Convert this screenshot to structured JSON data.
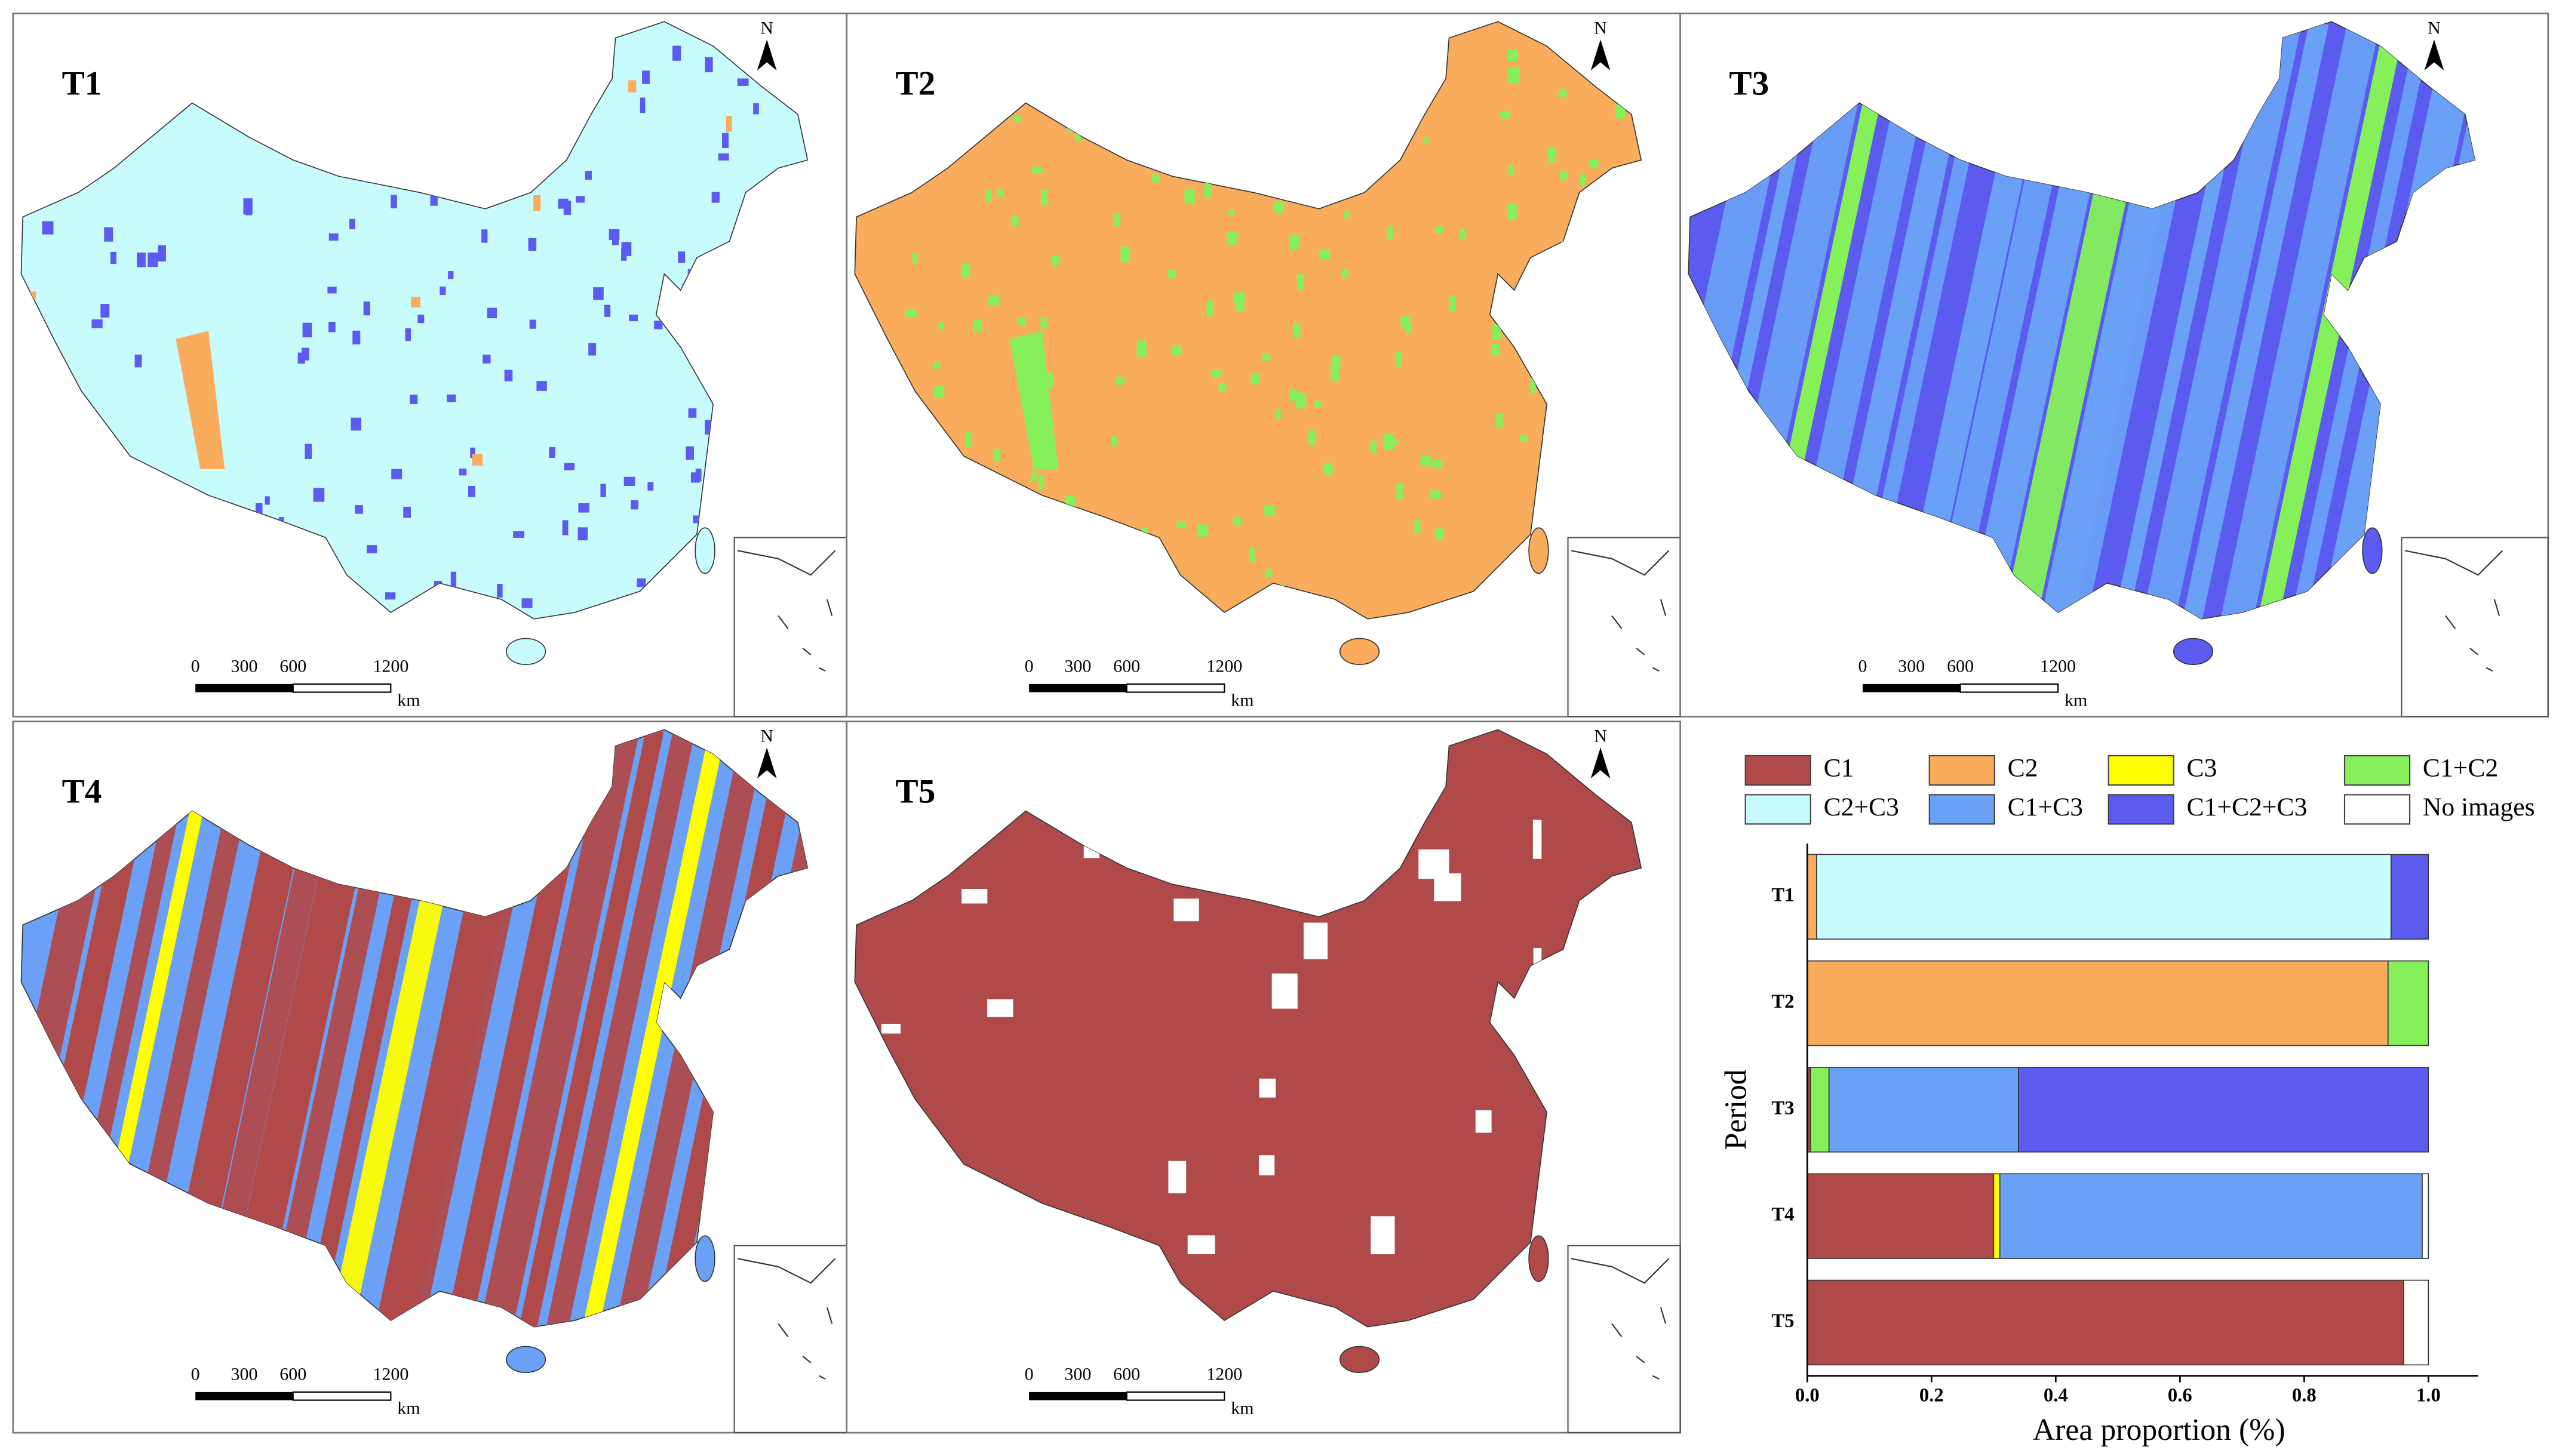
{
  "maps": [
    {
      "title": "T1",
      "fill": "#c8fcfc",
      "patch": "#5b5bf0",
      "patch2": "#f9ac5c",
      "style": "dots"
    },
    {
      "title": "T2",
      "fill": "#f9ac5c",
      "patch": "#86f05a",
      "patch2": "#86f05a",
      "style": "dots"
    },
    {
      "title": "T3",
      "fill": "#5b5bf0",
      "patch": "#6aa0f5",
      "patch2": "#86f05a",
      "style": "stripes"
    },
    {
      "title": "T4",
      "fill": "#6aa0f5",
      "patch": "#b04a4a",
      "patch2": "#ffff00",
      "style": "stripes"
    },
    {
      "title": "T5",
      "fill": "#b04a4a",
      "patch": "#ffffff",
      "patch2": "#ffffff",
      "style": "blocks"
    }
  ],
  "scale_bar": {
    "ticks": [
      0,
      300,
      600,
      1200
    ],
    "unit": "km"
  },
  "north": "N",
  "chart_data": {
    "type": "stacked-barh",
    "categories": [
      "T1",
      "T2",
      "T3",
      "T4",
      "T5"
    ],
    "series": [
      {
        "name": "C1",
        "color": "#b04a4a",
        "values": [
          0,
          0,
          0.005,
          0.3,
          0.96
        ]
      },
      {
        "name": "C2",
        "color": "#f9ac5c",
        "values": [
          0.015,
          0.935,
          0,
          0,
          0
        ]
      },
      {
        "name": "C3",
        "color": "#ffff00",
        "values": [
          0,
          0,
          0,
          0.01,
          0
        ]
      },
      {
        "name": "C1+C2",
        "color": "#86f05a",
        "values": [
          0,
          0.065,
          0.03,
          0,
          0
        ]
      },
      {
        "name": "C2+C3",
        "color": "#c8fcfc",
        "values": [
          0.925,
          0,
          0,
          0,
          0
        ]
      },
      {
        "name": "C1+C3",
        "color": "#6aa0f5",
        "values": [
          0,
          0,
          0.305,
          0.68,
          0
        ]
      },
      {
        "name": "C1+C2+C3",
        "color": "#5b5bf0",
        "values": [
          0.06,
          0,
          0.66,
          0,
          0
        ]
      },
      {
        "name": "No images",
        "color": "#ffffff",
        "values": [
          0,
          0,
          0,
          0.01,
          0.04
        ]
      }
    ],
    "xlim": [
      0,
      1.08
    ],
    "xticks": [
      {
        "value": 0,
        "label": "0.0"
      },
      0.2,
      0.4,
      0.6,
      0.8,
      {
        "value": 1,
        "label": "1.0"
      }
    ],
    "xlabel": "Area proportion (%)",
    "ylabel": "Period"
  }
}
